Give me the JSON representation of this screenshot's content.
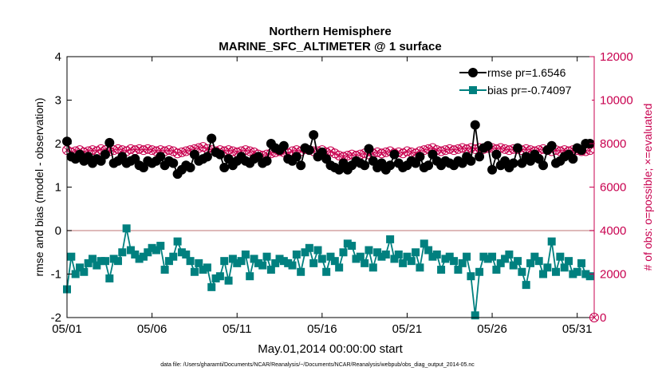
{
  "chart_data": {
    "type": "line",
    "title": "Northern Hemisphere",
    "subtitle": "MARINE_SFC_ALTIMETER @ 1 surface",
    "xlabel": "May.01,2014 00:00:00 start",
    "ylabel_left": "rmse and bias (model - observation)",
    "ylabel_right": "# of obs: o=possible; ×=evaluated",
    "footnote": "data file: /Users/gharamti/Documents/NCAR/Reanalysis/~/Documents/NCAR/Reanalysis/webpub/obs_diag_output_2014-05.nc",
    "x_unit": "days since May 01",
    "xlim": [
      0,
      31
    ],
    "ylim_left": [
      -2,
      4
    ],
    "ylim_right": [
      0,
      12000
    ],
    "x_ticks": [
      0,
      5,
      10,
      15,
      20,
      25,
      30
    ],
    "x_tick_labels": [
      "05/01",
      "05/06",
      "05/11",
      "05/16",
      "05/21",
      "05/26",
      "05/31"
    ],
    "y_left_ticks": [
      "-2",
      "-1",
      "0",
      "1",
      "2",
      "3",
      "4"
    ],
    "y_right_ticks": [
      "0",
      "2000",
      "4000",
      "6000",
      "8000",
      "10000",
      "12000"
    ],
    "grid": false,
    "legend_position": "top-right",
    "colors": {
      "rmse": "#000000",
      "bias": "#00807f",
      "obs": "#c8004f",
      "zero_line": "#d4a3a3"
    },
    "series": [
      {
        "name": "rmse pr=1.6546",
        "axis": "left",
        "marker": "circle",
        "x": [
          0.0,
          0.25,
          0.5,
          0.75,
          1.0,
          1.25,
          1.5,
          1.75,
          2.0,
          2.25,
          2.5,
          2.75,
          3.0,
          3.25,
          3.5,
          3.75,
          4.0,
          4.25,
          4.5,
          4.75,
          5.0,
          5.25,
          5.5,
          5.75,
          6.0,
          6.25,
          6.5,
          6.75,
          7.0,
          7.25,
          7.5,
          7.75,
          8.0,
          8.25,
          8.5,
          8.75,
          9.0,
          9.25,
          9.5,
          9.75,
          10.0,
          10.25,
          10.5,
          10.75,
          11.0,
          11.25,
          11.5,
          11.75,
          12.0,
          12.25,
          12.5,
          12.75,
          13.0,
          13.25,
          13.5,
          13.75,
          14.0,
          14.25,
          14.5,
          14.75,
          15.0,
          15.25,
          15.5,
          15.75,
          16.0,
          16.25,
          16.5,
          16.75,
          17.0,
          17.25,
          17.5,
          17.75,
          18.0,
          18.25,
          18.5,
          18.75,
          19.0,
          19.25,
          19.5,
          19.75,
          20.0,
          20.25,
          20.5,
          20.75,
          21.0,
          21.25,
          21.5,
          21.75,
          22.0,
          22.25,
          22.5,
          22.75,
          23.0,
          23.25,
          23.5,
          23.75,
          24.0,
          24.25,
          24.5,
          24.75,
          25.0,
          25.25,
          25.5,
          25.75,
          26.0,
          26.25,
          26.5,
          26.75,
          27.0,
          27.25,
          27.5,
          27.75,
          28.0,
          28.25,
          28.5,
          28.75,
          29.0,
          29.25,
          29.5,
          29.75,
          30.0,
          30.25,
          30.5,
          30.75
        ],
        "values": [
          2.05,
          1.7,
          1.65,
          1.75,
          1.6,
          1.7,
          1.55,
          1.65,
          1.6,
          1.75,
          2.02,
          1.55,
          1.6,
          1.7,
          1.55,
          1.6,
          1.65,
          1.5,
          1.45,
          1.6,
          1.55,
          1.6,
          1.7,
          1.5,
          1.6,
          1.55,
          1.3,
          1.4,
          1.5,
          1.45,
          1.75,
          1.6,
          1.65,
          1.7,
          2.12,
          1.8,
          1.75,
          1.45,
          1.65,
          1.5,
          1.6,
          1.7,
          1.6,
          1.55,
          1.65,
          1.7,
          1.55,
          1.6,
          2.0,
          1.9,
          1.85,
          1.95,
          1.65,
          1.6,
          1.7,
          1.5,
          1.9,
          1.85,
          2.2,
          1.7,
          1.8,
          1.65,
          1.5,
          1.45,
          1.4,
          1.55,
          1.4,
          1.5,
          1.6,
          1.55,
          1.5,
          1.88,
          1.6,
          1.45,
          1.55,
          1.4,
          1.5,
          1.75,
          1.55,
          1.45,
          1.5,
          1.6,
          1.55,
          1.7,
          1.45,
          1.5,
          1.75,
          1.6,
          1.5,
          1.6,
          1.55,
          1.5,
          1.6,
          1.55,
          1.7,
          1.6,
          2.43,
          1.7,
          1.9,
          1.95,
          1.4,
          1.75,
          1.5,
          1.6,
          1.45,
          1.55,
          1.9,
          1.55,
          1.7,
          1.6,
          1.75,
          1.65,
          1.5,
          1.85,
          1.95,
          1.55,
          1.6,
          1.7,
          1.75,
          1.65,
          1.9,
          1.85,
          2.0,
          2.0
        ]
      },
      {
        "name": "bias pr=-0.74097",
        "axis": "left",
        "marker": "square",
        "x": [
          0.0,
          0.25,
          0.5,
          0.75,
          1.0,
          1.25,
          1.5,
          1.75,
          2.0,
          2.25,
          2.5,
          2.75,
          3.0,
          3.25,
          3.5,
          3.75,
          4.0,
          4.25,
          4.5,
          4.75,
          5.0,
          5.25,
          5.5,
          5.75,
          6.0,
          6.25,
          6.5,
          6.75,
          7.0,
          7.25,
          7.5,
          7.75,
          8.0,
          8.25,
          8.5,
          8.75,
          9.0,
          9.25,
          9.5,
          9.75,
          10.0,
          10.25,
          10.5,
          10.75,
          11.0,
          11.25,
          11.5,
          11.75,
          12.0,
          12.25,
          12.5,
          12.75,
          13.0,
          13.25,
          13.5,
          13.75,
          14.0,
          14.25,
          14.5,
          14.75,
          15.0,
          15.25,
          15.5,
          15.75,
          16.0,
          16.25,
          16.5,
          16.75,
          17.0,
          17.25,
          17.5,
          17.75,
          18.0,
          18.25,
          18.5,
          18.75,
          19.0,
          19.25,
          19.5,
          19.75,
          20.0,
          20.25,
          20.5,
          20.75,
          21.0,
          21.25,
          21.5,
          21.75,
          22.0,
          22.25,
          22.5,
          22.75,
          23.0,
          23.25,
          23.5,
          23.75,
          24.0,
          24.25,
          24.5,
          24.75,
          25.0,
          25.25,
          25.5,
          25.75,
          26.0,
          26.25,
          26.5,
          26.75,
          27.0,
          27.25,
          27.5,
          27.75,
          28.0,
          28.25,
          28.5,
          28.75,
          29.0,
          29.25,
          29.5,
          29.75,
          30.0,
          30.25,
          30.5,
          30.75
        ],
        "values": [
          -1.35,
          -0.6,
          -1.0,
          -0.85,
          -0.95,
          -0.75,
          -0.65,
          -0.8,
          -0.7,
          -0.7,
          -1.1,
          -0.65,
          -0.7,
          -0.5,
          0.05,
          -0.45,
          -0.55,
          -0.65,
          -0.6,
          -0.5,
          -0.4,
          -0.45,
          -0.35,
          -0.9,
          -0.7,
          -0.6,
          -0.25,
          -0.5,
          -0.55,
          -0.7,
          -0.95,
          -0.75,
          -0.9,
          -0.85,
          -1.3,
          -1.1,
          -1.05,
          -0.7,
          -1.15,
          -0.65,
          -0.75,
          -0.7,
          -0.55,
          -1.05,
          -0.65,
          -0.75,
          -0.8,
          -0.6,
          -0.9,
          -0.75,
          -0.65,
          -0.7,
          -0.75,
          -0.8,
          -0.55,
          -0.95,
          -0.5,
          -0.4,
          -0.75,
          -0.45,
          -0.65,
          -0.95,
          -0.6,
          -0.7,
          -0.85,
          -0.5,
          -0.3,
          -0.35,
          -0.65,
          -0.6,
          -0.75,
          -0.45,
          -0.85,
          -0.5,
          -0.6,
          -0.55,
          -0.2,
          -0.65,
          -0.55,
          -0.75,
          -0.6,
          -0.7,
          -0.5,
          -0.85,
          -0.3,
          -0.45,
          -0.6,
          -0.55,
          -0.9,
          -0.65,
          -0.6,
          -0.7,
          -0.9,
          -0.75,
          -0.6,
          -1.05,
          -1.95,
          -0.95,
          -0.6,
          -0.65,
          -0.6,
          -0.9,
          -0.75,
          -0.65,
          -0.55,
          -0.8,
          -0.7,
          -0.95,
          -1.25,
          -0.75,
          -0.6,
          -0.7,
          -1.0,
          -0.85,
          -0.25,
          -0.95,
          -0.6,
          -0.85,
          -0.7,
          -1.0,
          -0.95,
          -0.75,
          -1.0,
          -1.05
        ]
      },
      {
        "name": "possible",
        "axis": "right",
        "marker": "circle-open",
        "x": [
          0.0,
          0.25,
          0.5,
          0.75,
          1.0,
          1.25,
          1.5,
          1.75,
          2.0,
          2.25,
          2.5,
          2.75,
          3.0,
          3.25,
          3.5,
          3.75,
          4.0,
          4.25,
          4.5,
          4.75,
          5.0,
          5.25,
          5.5,
          5.75,
          6.0,
          6.25,
          6.5,
          6.75,
          7.0,
          7.25,
          7.5,
          7.75,
          8.0,
          8.25,
          8.5,
          8.75,
          9.0,
          9.25,
          9.5,
          9.75,
          10.0,
          10.25,
          10.5,
          10.75,
          11.0,
          11.25,
          11.5,
          11.75,
          12.0,
          12.25,
          12.5,
          12.75,
          13.0,
          13.25,
          13.5,
          13.75,
          14.0,
          14.25,
          14.5,
          14.75,
          15.0,
          15.25,
          15.5,
          15.75,
          16.0,
          16.25,
          16.5,
          16.75,
          17.0,
          17.25,
          17.5,
          17.75,
          18.0,
          18.25,
          18.5,
          18.75,
          19.0,
          19.25,
          19.5,
          19.75,
          20.0,
          20.25,
          20.5,
          20.75,
          21.0,
          21.25,
          21.5,
          21.75,
          22.0,
          22.25,
          22.5,
          22.75,
          23.0,
          23.25,
          23.5,
          23.75,
          24.0,
          24.25,
          24.5,
          24.75,
          25.0,
          25.25,
          25.5,
          25.75,
          26.0,
          26.25,
          26.5,
          26.75,
          27.0,
          27.25,
          27.5,
          27.75,
          28.0,
          28.25,
          28.5,
          28.75,
          29.0,
          29.25,
          29.5,
          29.75,
          30.0,
          30.25,
          30.5,
          30.75,
          31.0
        ],
        "values": [
          7700,
          7600,
          7650,
          7700,
          7600,
          7650,
          7700,
          7650,
          7750,
          7700,
          7650,
          7700,
          7750,
          7700,
          7650,
          7750,
          7700,
          7750,
          7700,
          7750,
          7700,
          7650,
          7700,
          7650,
          7700,
          7650,
          7550,
          7600,
          7650,
          7700,
          7750,
          7800,
          7850,
          7750,
          7700,
          7650,
          7700,
          7650,
          7700,
          7650,
          7600,
          7650,
          7700,
          7650,
          7600,
          7500,
          7450,
          7500,
          7550,
          7600,
          7650,
          7600,
          7550,
          7650,
          7700,
          7650,
          7750,
          7700,
          7650,
          7650,
          7700,
          7600,
          7650,
          7550,
          7450,
          7400,
          7450,
          7500,
          7450,
          7500,
          7550,
          7500,
          7550,
          7600,
          7550,
          7600,
          7650,
          7550,
          7600,
          7550,
          7650,
          7600,
          7550,
          7650,
          7700,
          7750,
          7800,
          7700,
          7650,
          7700,
          7750,
          7700,
          7750,
          7800,
          7750,
          7800,
          7750,
          7800,
          7750,
          7800,
          7800,
          7750,
          7800,
          7750,
          7700,
          7750,
          7750,
          7700,
          7750,
          7700,
          7650,
          7700,
          7750,
          7700,
          7650,
          7700,
          7650,
          7700,
          7650,
          7700,
          7700,
          7650,
          7650,
          7700,
          0
        ]
      }
    ]
  }
}
